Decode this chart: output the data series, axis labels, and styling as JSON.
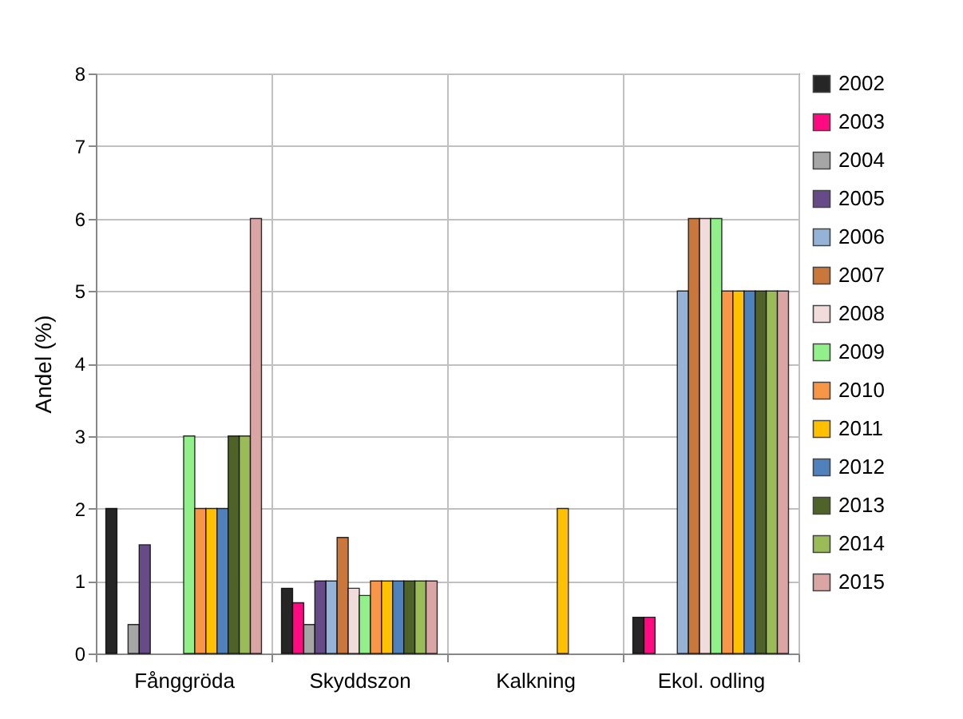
{
  "chart_data": {
    "type": "bar",
    "ylabel": "Andel (%)",
    "categories": [
      "Fånggröda",
      "Skyddszon",
      "Kalkning",
      "Ekol. odling"
    ],
    "ylim": [
      0,
      8
    ],
    "yticks": [
      0,
      1,
      2,
      3,
      4,
      5,
      6,
      7,
      8
    ],
    "grid": true,
    "legend": "right",
    "series": [
      {
        "name": "2002",
        "color": "#262626",
        "values": [
          2,
          0.9,
          null,
          0.5
        ]
      },
      {
        "name": "2003",
        "color": "#ff0a80",
        "values": [
          null,
          0.7,
          null,
          0.5
        ]
      },
      {
        "name": "2004",
        "color": "#a6a6a6",
        "values": [
          0.4,
          0.4,
          null,
          null
        ]
      },
      {
        "name": "2005",
        "color": "#674b88",
        "values": [
          1.5,
          1,
          null,
          null
        ]
      },
      {
        "name": "2006",
        "color": "#95b3d7",
        "values": [
          null,
          1,
          null,
          5
        ]
      },
      {
        "name": "2007",
        "color": "#c9773a",
        "values": [
          null,
          1.6,
          null,
          6
        ]
      },
      {
        "name": "2008",
        "color": "#f2dcdb",
        "values": [
          null,
          0.9,
          null,
          6
        ]
      },
      {
        "name": "2009",
        "color": "#92f08a",
        "values": [
          3,
          0.8,
          null,
          6
        ]
      },
      {
        "name": "2010",
        "color": "#f79646",
        "values": [
          2,
          1,
          null,
          5
        ]
      },
      {
        "name": "2011",
        "color": "#ffc000",
        "values": [
          2,
          1,
          2,
          5
        ]
      },
      {
        "name": "2012",
        "color": "#4f81bd",
        "values": [
          2,
          1,
          null,
          5
        ]
      },
      {
        "name": "2013",
        "color": "#4f6228",
        "values": [
          3,
          1,
          null,
          5
        ]
      },
      {
        "name": "2014",
        "color": "#9bbb59",
        "values": [
          3,
          1,
          null,
          5
        ]
      },
      {
        "name": "2015",
        "color": "#d9a5a5",
        "values": [
          6,
          1,
          null,
          5
        ]
      }
    ]
  }
}
